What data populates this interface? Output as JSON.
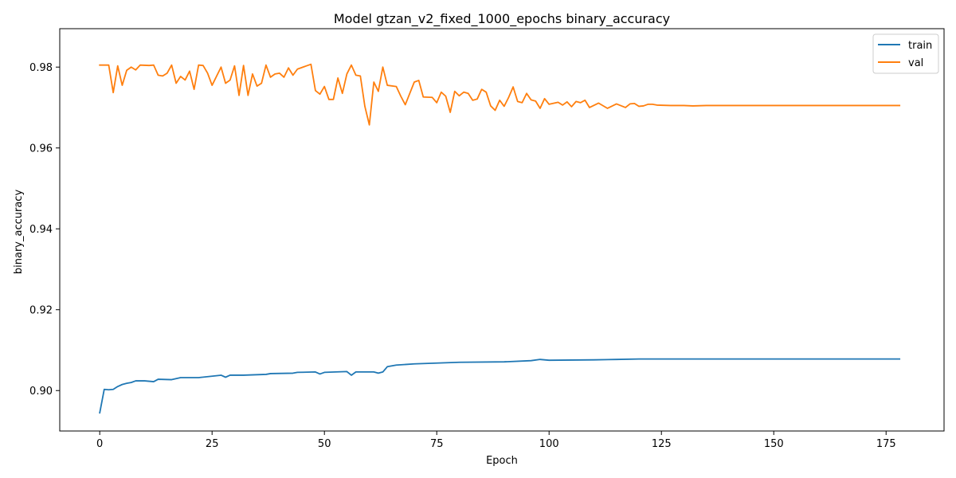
{
  "chart_data": {
    "type": "line",
    "title": "Model gtzan_v2_fixed_1000_epochs binary_accuracy",
    "xlabel": "Epoch",
    "ylabel": "binary_accuracy",
    "xlim": [
      -8.9,
      187.9
    ],
    "ylim": [
      0.89,
      0.9895
    ],
    "xticks": [
      0,
      25,
      50,
      75,
      100,
      125,
      150,
      175
    ],
    "yticks": [
      0.9,
      0.92,
      0.94,
      0.96,
      0.98
    ],
    "ytick_labels": [
      "0.90",
      "0.92",
      "0.94",
      "0.96",
      "0.98"
    ],
    "grid": false,
    "legend_position": "top-right",
    "x_start": 0,
    "x_end": 178,
    "series": [
      {
        "name": "train",
        "color": "#1f77b4",
        "anchors": [
          [
            0,
            0.8945
          ],
          [
            1,
            0.9003
          ],
          [
            2,
            0.9002
          ],
          [
            3,
            0.9003
          ],
          [
            4,
            0.901
          ],
          [
            5,
            0.9015
          ],
          [
            6,
            0.9018
          ],
          [
            7,
            0.902
          ],
          [
            8,
            0.9024
          ],
          [
            10,
            0.9024
          ],
          [
            12,
            0.9022
          ],
          [
            13,
            0.9028
          ],
          [
            16,
            0.9027
          ],
          [
            18,
            0.9032
          ],
          [
            22,
            0.9032
          ],
          [
            27,
            0.9038
          ],
          [
            28,
            0.9033
          ],
          [
            29,
            0.9038
          ],
          [
            32,
            0.9038
          ],
          [
            37,
            0.904
          ],
          [
            38,
            0.9042
          ],
          [
            43,
            0.9043
          ],
          [
            44,
            0.9045
          ],
          [
            48,
            0.9046
          ],
          [
            49,
            0.9041
          ],
          [
            50,
            0.9045
          ],
          [
            55,
            0.9047
          ],
          [
            56,
            0.9038
          ],
          [
            57,
            0.9046
          ],
          [
            61,
            0.9046
          ],
          [
            62,
            0.9043
          ],
          [
            63,
            0.9046
          ],
          [
            64,
            0.9059
          ],
          [
            66,
            0.9063
          ],
          [
            70,
            0.9066
          ],
          [
            75,
            0.9068
          ],
          [
            80,
            0.907
          ],
          [
            90,
            0.9071
          ],
          [
            96,
            0.9074
          ],
          [
            98,
            0.9077
          ],
          [
            100,
            0.9075
          ],
          [
            110,
            0.9076
          ],
          [
            115,
            0.9077
          ],
          [
            120,
            0.9078
          ],
          [
            125,
            0.9078
          ],
          [
            130,
            0.9078
          ],
          [
            135,
            0.9078
          ],
          [
            140,
            0.9078
          ],
          [
            150,
            0.9078
          ],
          [
            178,
            0.9078
          ]
        ]
      },
      {
        "name": "val",
        "color": "#ff7f0e",
        "anchors": [
          [
            0,
            0.9805
          ],
          [
            2,
            0.9805
          ],
          [
            3,
            0.9737
          ],
          [
            4,
            0.9803
          ],
          [
            5,
            0.9755
          ],
          [
            6,
            0.9792
          ],
          [
            7,
            0.98
          ],
          [
            8,
            0.9793
          ],
          [
            9,
            0.9805
          ],
          [
            11,
            0.9804
          ],
          [
            12,
            0.9805
          ],
          [
            13,
            0.978
          ],
          [
            14,
            0.9778
          ],
          [
            15,
            0.9785
          ],
          [
            16,
            0.9805
          ],
          [
            17,
            0.976
          ],
          [
            18,
            0.9777
          ],
          [
            19,
            0.9768
          ],
          [
            20,
            0.979
          ],
          [
            21,
            0.9745
          ],
          [
            22,
            0.9805
          ],
          [
            23,
            0.9804
          ],
          [
            24,
            0.9785
          ],
          [
            25,
            0.9755
          ],
          [
            27,
            0.98
          ],
          [
            28,
            0.976
          ],
          [
            29,
            0.9768
          ],
          [
            30,
            0.9803
          ],
          [
            31,
            0.973
          ],
          [
            32,
            0.9804
          ],
          [
            33,
            0.973
          ],
          [
            34,
            0.9783
          ],
          [
            35,
            0.9753
          ],
          [
            36,
            0.976
          ],
          [
            37,
            0.9805
          ],
          [
            38,
            0.9775
          ],
          [
            39,
            0.9783
          ],
          [
            40,
            0.9785
          ],
          [
            41,
            0.9775
          ],
          [
            42,
            0.9798
          ],
          [
            43,
            0.978
          ],
          [
            44,
            0.9795
          ],
          [
            46,
            0.9803
          ],
          [
            47,
            0.9807
          ],
          [
            48,
            0.9742
          ],
          [
            49,
            0.9733
          ],
          [
            50,
            0.9752
          ],
          [
            51,
            0.972
          ],
          [
            52,
            0.972
          ],
          [
            53,
            0.9773
          ],
          [
            54,
            0.9735
          ],
          [
            55,
            0.9783
          ],
          [
            56,
            0.9805
          ],
          [
            57,
            0.978
          ],
          [
            58,
            0.9778
          ],
          [
            59,
            0.9703
          ],
          [
            60,
            0.9657
          ],
          [
            61,
            0.9763
          ],
          [
            62,
            0.974
          ],
          [
            63,
            0.98
          ],
          [
            64,
            0.9755
          ],
          [
            66,
            0.9752
          ],
          [
            67,
            0.9728
          ],
          [
            68,
            0.9707
          ],
          [
            69,
            0.9735
          ],
          [
            70,
            0.9763
          ],
          [
            71,
            0.9767
          ],
          [
            72,
            0.9726
          ],
          [
            74,
            0.9725
          ],
          [
            75,
            0.9712
          ],
          [
            76,
            0.9738
          ],
          [
            77,
            0.9728
          ],
          [
            78,
            0.9688
          ],
          [
            79,
            0.974
          ],
          [
            80,
            0.9729
          ],
          [
            81,
            0.9738
          ],
          [
            82,
            0.9735
          ],
          [
            83,
            0.9718
          ],
          [
            84,
            0.9721
          ],
          [
            85,
            0.9745
          ],
          [
            86,
            0.9738
          ],
          [
            87,
            0.9704
          ],
          [
            88,
            0.9693
          ],
          [
            89,
            0.9718
          ],
          [
            90,
            0.9703
          ],
          [
            91,
            0.9725
          ],
          [
            92,
            0.9751
          ],
          [
            93,
            0.9715
          ],
          [
            94,
            0.9712
          ],
          [
            95,
            0.9735
          ],
          [
            96,
            0.9719
          ],
          [
            97,
            0.9716
          ],
          [
            98,
            0.9698
          ],
          [
            99,
            0.9722
          ],
          [
            100,
            0.9708
          ],
          [
            102,
            0.9713
          ],
          [
            103,
            0.9706
          ],
          [
            104,
            0.9714
          ],
          [
            105,
            0.9702
          ],
          [
            106,
            0.9715
          ],
          [
            107,
            0.9712
          ],
          [
            108,
            0.9718
          ],
          [
            109,
            0.97
          ],
          [
            111,
            0.9711
          ],
          [
            113,
            0.9698
          ],
          [
            115,
            0.9709
          ],
          [
            117,
            0.97
          ],
          [
            118,
            0.9709
          ],
          [
            119,
            0.971
          ],
          [
            120,
            0.9703
          ],
          [
            121,
            0.9704
          ],
          [
            122,
            0.9708
          ],
          [
            123,
            0.9708
          ],
          [
            124,
            0.9706
          ],
          [
            127,
            0.9705
          ],
          [
            130,
            0.9705
          ],
          [
            132,
            0.9704
          ],
          [
            135,
            0.9705
          ],
          [
            140,
            0.9705
          ],
          [
            178,
            0.9705
          ]
        ]
      }
    ]
  }
}
